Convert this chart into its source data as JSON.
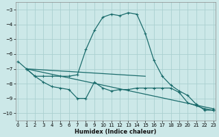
{
  "xlabel": "Humidex (Indice chaleur)",
  "bg_color": "#cce8e8",
  "grid_color": "#aad0d0",
  "line_color": "#1a6b6b",
  "xlim": [
    -0.3,
    23.3
  ],
  "ylim": [
    -10.5,
    -2.5
  ],
  "yticks": [
    -10,
    -9,
    -8,
    -7,
    -6,
    -5,
    -4,
    -3
  ],
  "xticks": [
    0,
    1,
    2,
    3,
    4,
    5,
    6,
    7,
    8,
    9,
    10,
    11,
    12,
    13,
    14,
    15,
    16,
    17,
    18,
    19,
    20,
    21,
    22,
    23
  ],
  "line1_x": [
    0,
    1,
    2,
    3,
    4,
    5,
    6,
    7,
    8,
    9,
    10,
    11,
    12,
    13,
    14,
    15,
    16,
    17,
    18,
    19,
    20,
    21,
    22,
    23
  ],
  "line1_y": [
    -6.5,
    -7.0,
    -7.5,
    -7.5,
    -7.5,
    -7.5,
    -7.5,
    -7.4,
    -5.7,
    -4.4,
    -3.5,
    -3.3,
    -3.4,
    -3.2,
    -3.3,
    -4.6,
    -6.4,
    -7.5,
    -8.1,
    -8.5,
    -8.8,
    -9.4,
    -9.8,
    -9.8
  ],
  "line2_x": [
    1,
    2,
    3,
    4,
    5,
    6,
    7,
    8,
    9,
    10,
    11,
    12,
    13,
    14,
    15,
    16,
    17,
    18,
    19,
    20,
    21,
    22,
    23
  ],
  "line2_y": [
    -7.0,
    -7.5,
    -7.9,
    -8.2,
    -8.3,
    -8.4,
    -9.0,
    -9.0,
    -7.9,
    -8.3,
    -8.5,
    -8.4,
    -8.4,
    -8.3,
    -8.3,
    -8.3,
    -8.3,
    -8.3,
    -8.6,
    -9.3,
    -9.5,
    -9.7,
    -9.8
  ],
  "line3_x": [
    1,
    15
  ],
  "line3_y": [
    -7.0,
    -7.5
  ],
  "line4_x": [
    1,
    23
  ],
  "line4_y": [
    -7.0,
    -9.7
  ]
}
